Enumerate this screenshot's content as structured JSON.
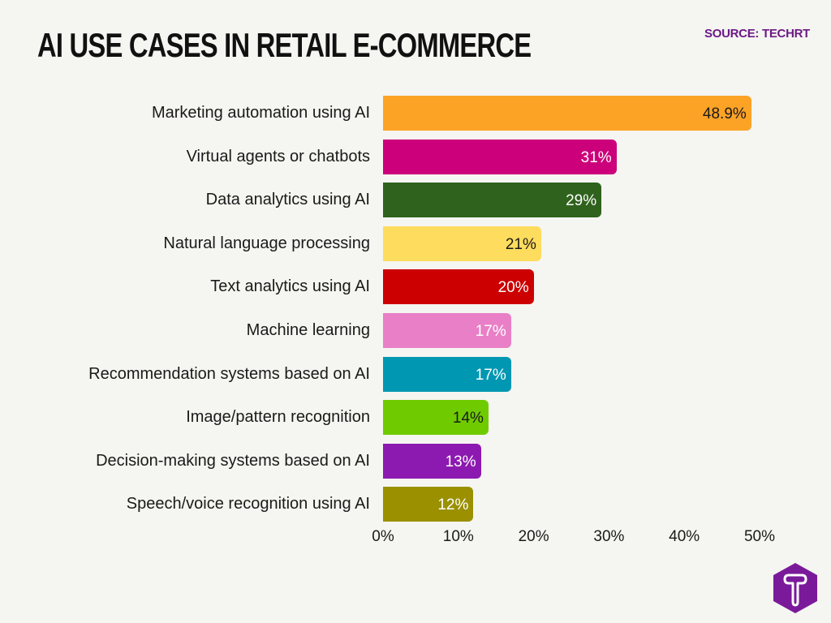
{
  "header": {
    "title": "AI USE CASES IN RETAIL E-COMMERCE",
    "source": "SOURCE: TECHRT"
  },
  "logo": {
    "icon": "techrt-hexagon-t-logo",
    "color": "#7a1a9a"
  },
  "chart": {
    "rows": [
      {
        "label": "Marketing automation using AI",
        "value": 48.9,
        "value_label": "48.9%",
        "color": "#fca326",
        "text_color": "#1a1a1a"
      },
      {
        "label": "Virtual agents or chatbots",
        "value": 31,
        "value_label": "31%",
        "color": "#cc007a",
        "text_color": "#ffffff"
      },
      {
        "label": "Data analytics using AI",
        "value": 29,
        "value_label": "29%",
        "color": "#2f621c",
        "text_color": "#ffffff"
      },
      {
        "label": "Natural language processing",
        "value": 21,
        "value_label": "21%",
        "color": "#fedc5d",
        "text_color": "#1a1a1a"
      },
      {
        "label": "Text analytics using AI",
        "value": 20,
        "value_label": "20%",
        "color": "#cc0000",
        "text_color": "#ffffff"
      },
      {
        "label": "Machine learning",
        "value": 17,
        "value_label": "17%",
        "color": "#e97fc6",
        "text_color": "#ffffff"
      },
      {
        "label": "Recommendation systems based on AI",
        "value": 17,
        "value_label": "17%",
        "color": "#0097b2",
        "text_color": "#ffffff"
      },
      {
        "label": "Image/pattern recognition",
        "value": 14,
        "value_label": "14%",
        "color": "#6fcb00",
        "text_color": "#1a1a1a"
      },
      {
        "label": "Decision-making systems based on AI",
        "value": 13,
        "value_label": "13%",
        "color": "#8c1ab0",
        "text_color": "#ffffff"
      },
      {
        "label": "Speech/voice recognition using AI",
        "value": 12,
        "value_label": "12%",
        "color": "#9a9000",
        "text_color": "#ffffff"
      }
    ],
    "x_ticks": [
      "0%",
      "10%",
      "20%",
      "30%",
      "40%",
      "50%"
    ]
  },
  "chart_data": {
    "type": "bar",
    "orientation": "horizontal",
    "title": "AI USE CASES IN RETAIL E-COMMERCE",
    "subtitle": "SOURCE: TECHRT",
    "categories": [
      "Marketing automation using AI",
      "Virtual agents or chatbots",
      "Data analytics using AI",
      "Natural language processing",
      "Text analytics using AI",
      "Machine learning",
      "Recommendation systems based on AI",
      "Image/pattern recognition",
      "Decision-making systems based on AI",
      "Speech/voice recognition using AI"
    ],
    "values": [
      48.9,
      31,
      29,
      21,
      20,
      17,
      17,
      14,
      13,
      12
    ],
    "value_labels": [
      "48.9%",
      "31%",
      "29%",
      "21%",
      "20%",
      "17%",
      "17%",
      "14%",
      "13%",
      "12%"
    ],
    "colors": [
      "#fca326",
      "#cc007a",
      "#2f621c",
      "#fedc5d",
      "#cc0000",
      "#e97fc6",
      "#0097b2",
      "#6fcb00",
      "#8c1ab0",
      "#9a9000"
    ],
    "xlabel": "",
    "ylabel": "",
    "xlim": [
      0,
      50
    ],
    "x_tick_labels": [
      "0%",
      "10%",
      "20%",
      "30%",
      "40%",
      "50%"
    ],
    "grid": false,
    "legend": "none",
    "unit": "%"
  }
}
